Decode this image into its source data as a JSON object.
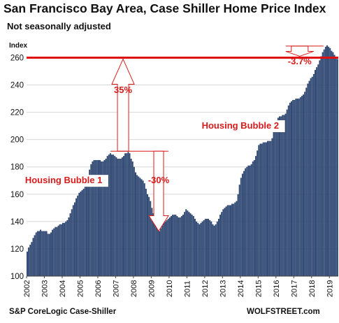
{
  "header": {
    "title": "San Francisco Bay Area, Case Shiller Home Price Index",
    "subtitle": "Not seasonally adjusted"
  },
  "footer": {
    "source": "S&P CoreLogic Case-Shiller",
    "credit": "WOLFSTREET.com"
  },
  "colors": {
    "bar": "#2d4671",
    "reference_line": "#e01010",
    "annotation_text": "#d81b1b",
    "arrow": "#d81b1b"
  },
  "chart_data": {
    "type": "bar",
    "title": "San Francisco Bay Area, Case Shiller Home Price Index",
    "subtitle": "Not seasonally adjusted",
    "ylabel": "Index",
    "xlabel": "",
    "ylim": [
      100,
      272
    ],
    "yticks": [
      100,
      120,
      140,
      160,
      180,
      200,
      220,
      240,
      260
    ],
    "year_labels": [
      "2002",
      "2003",
      "2004",
      "2005",
      "2006",
      "2007",
      "2008",
      "2009",
      "2010",
      "2011",
      "2012",
      "2013",
      "2014",
      "2015",
      "2016",
      "2017",
      "2018",
      "2019"
    ],
    "x_start": "2002-01",
    "frequency": "monthly",
    "values": [
      118,
      121,
      123,
      125,
      128,
      130,
      132,
      133,
      133,
      134,
      133,
      133,
      133,
      133,
      131,
      131,
      132,
      134,
      135,
      136,
      136,
      137,
      138,
      138,
      139,
      139,
      140,
      141,
      143,
      146,
      149,
      152,
      154,
      157,
      159,
      161,
      162,
      163,
      164,
      166,
      169,
      173,
      178,
      182,
      184,
      185,
      185,
      185,
      185,
      185,
      184,
      184,
      185,
      186,
      188,
      189,
      190,
      189,
      189,
      188,
      187,
      186,
      186,
      186,
      187,
      188,
      190,
      190,
      191,
      190,
      186,
      184,
      180,
      176,
      174,
      173,
      172,
      171,
      170,
      168,
      164,
      160,
      158,
      155,
      150,
      146,
      142,
      138,
      135,
      133,
      135,
      137,
      139,
      140,
      141,
      142,
      143,
      144,
      145,
      145,
      145,
      144,
      143,
      143,
      144,
      145,
      147,
      149,
      148,
      147,
      146,
      145,
      144,
      142,
      140,
      139,
      138,
      139,
      140,
      141,
      142,
      142,
      142,
      141,
      140,
      138,
      137,
      138,
      140,
      142,
      145,
      147,
      149,
      150,
      151,
      152,
      152,
      152,
      153,
      153,
      154,
      155,
      160,
      167,
      172,
      175,
      177,
      179,
      180,
      181,
      181,
      182,
      184,
      185,
      188,
      192,
      196,
      197,
      197,
      198,
      198,
      198,
      199,
      199,
      199,
      201,
      206,
      210,
      214,
      216,
      217,
      217,
      218,
      218,
      219,
      222,
      225,
      227,
      228,
      229,
      229,
      230,
      230,
      230,
      231,
      232,
      233,
      235,
      238,
      241,
      243,
      245,
      246,
      248,
      251,
      253,
      255,
      258,
      261,
      264,
      266,
      268,
      269,
      268,
      267,
      265,
      264,
      262,
      260,
      259
    ],
    "reference_line": {
      "value": 260,
      "color": "#e01010"
    },
    "annotations": [
      {
        "text": "Housing Bubble 1",
        "x": "2004-02",
        "y": 168
      },
      {
        "text": "Housing Bubble 2",
        "x": "2014-01",
        "y": 208
      },
      {
        "text": "35%",
        "x": "2007-06",
        "y": 234
      },
      {
        "text": "-30%",
        "x": "2009-06",
        "y": 168
      },
      {
        "text": "-3.7%",
        "x": "2017-05",
        "y": 255
      }
    ]
  }
}
